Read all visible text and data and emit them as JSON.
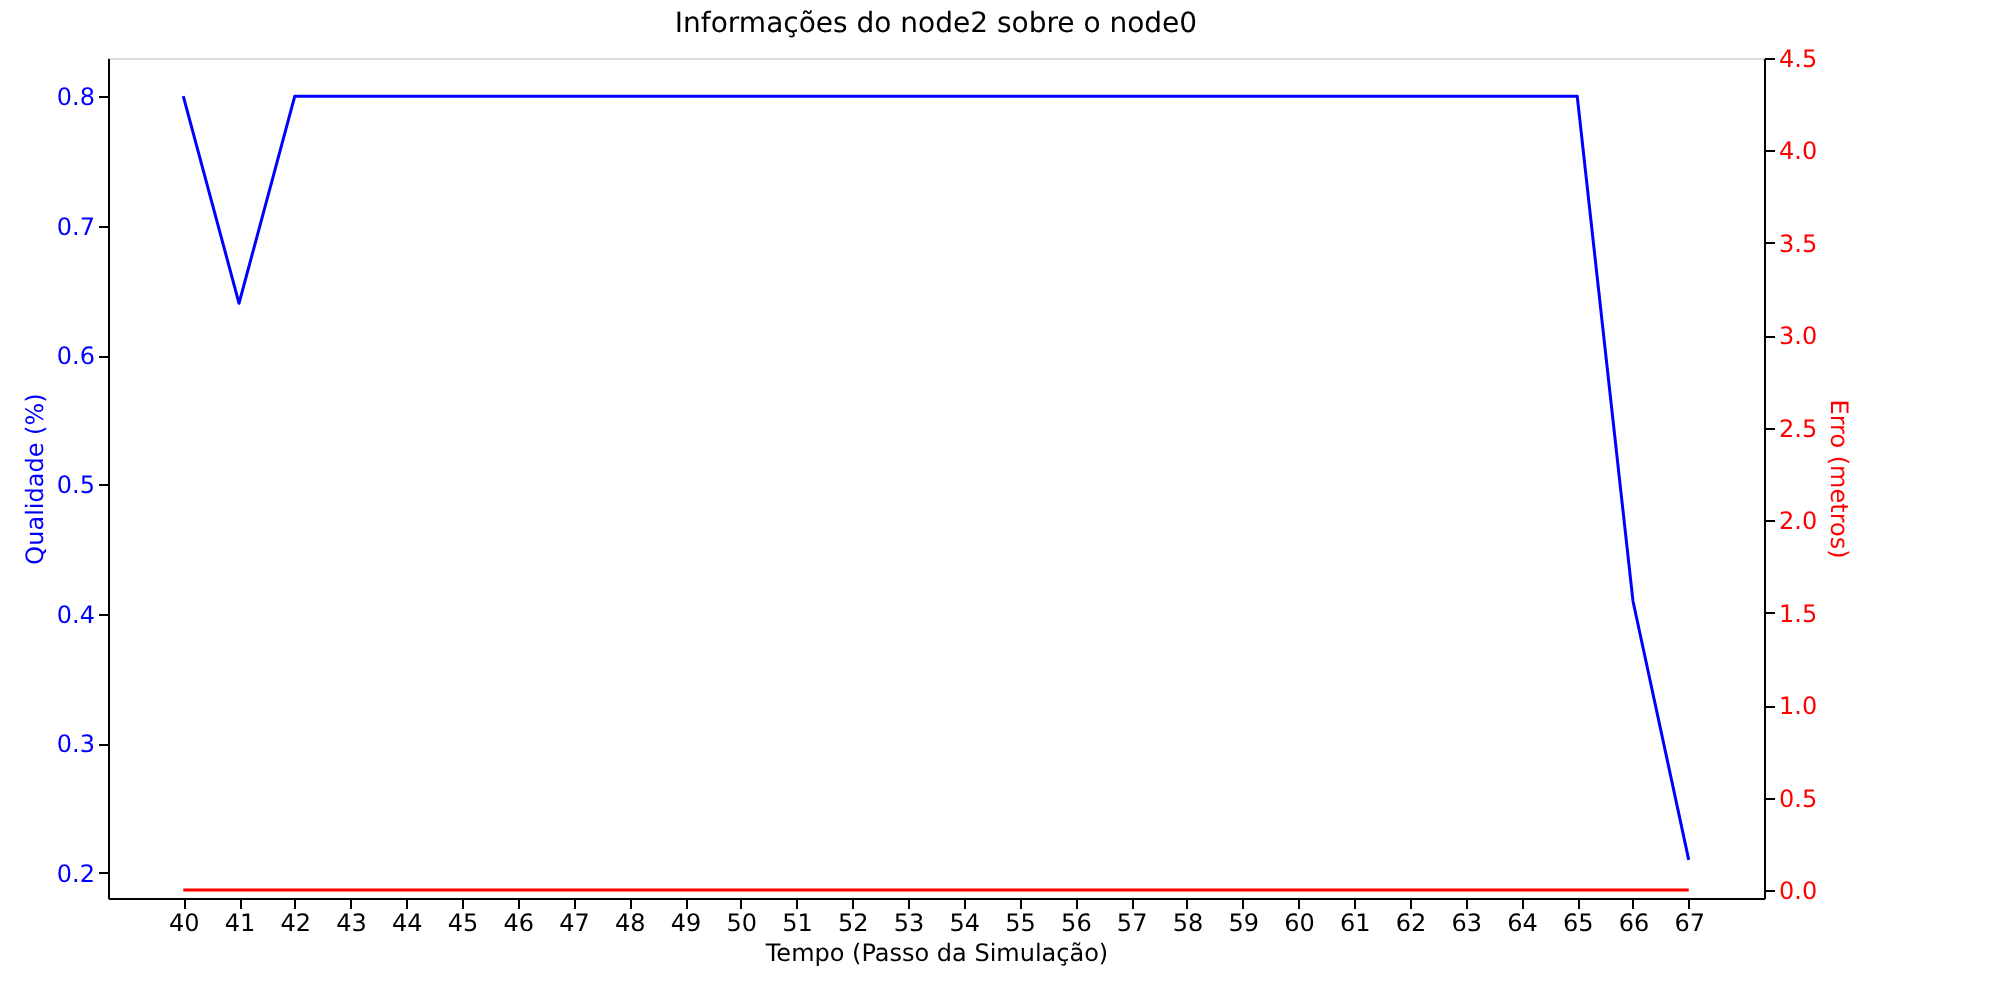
{
  "chart_data": {
    "type": "line",
    "title": "Informações do node2 sobre o node0",
    "xlabel": "Tempo (Passo da Simulação)",
    "ylabel": "Qualidade (%)",
    "y2label": "Erro (metros)",
    "x": [
      40,
      41,
      42,
      43,
      44,
      45,
      46,
      47,
      48,
      49,
      50,
      51,
      52,
      53,
      54,
      55,
      56,
      57,
      58,
      59,
      60,
      61,
      62,
      63,
      64,
      65,
      66,
      67
    ],
    "series": [
      {
        "color": "#0000ff",
        "values": [
          0.8,
          0.64,
          0.8,
          0.8,
          0.8,
          0.8,
          0.8,
          0.8,
          0.8,
          0.8,
          0.8,
          0.8,
          0.8,
          0.8,
          0.8,
          0.8,
          0.8,
          0.8,
          0.8,
          0.8,
          0.8,
          0.8,
          0.8,
          0.8,
          0.8,
          0.8,
          0.41,
          0.21
        ]
      },
      {
        "color": "#ff0000",
        "axis": "y2",
        "values": [
          0,
          0,
          0,
          0,
          0,
          0,
          0,
          0,
          0,
          0,
          0,
          0,
          0,
          0,
          0,
          0,
          0,
          0,
          0,
          0,
          0,
          0,
          0,
          0,
          0,
          0,
          0,
          0
        ]
      }
    ],
    "xlim": [
      38.65,
      68.35
    ],
    "xticks": [
      40,
      41,
      42,
      43,
      44,
      45,
      46,
      47,
      48,
      49,
      50,
      51,
      52,
      53,
      54,
      55,
      56,
      57,
      58,
      59,
      60,
      61,
      62,
      63,
      64,
      65,
      66,
      67
    ],
    "ylim": [
      0.1805,
      0.8295
    ],
    "yticks": [
      0.2,
      0.3,
      0.4,
      0.5,
      0.6,
      0.7,
      0.8
    ],
    "y2lim": [
      -0.043,
      4.5
    ],
    "y2ticks": [
      {
        "value": 0,
        "label": "0.0"
      },
      0.5,
      {
        "value": 1,
        "label": "1.0"
      },
      1.5,
      {
        "value": 2,
        "label": "2.0"
      },
      2.5,
      {
        "value": 3,
        "label": "3.0"
      },
      3.5,
      {
        "value": 4,
        "label": "4.0"
      },
      4.5
    ],
    "grid": false,
    "marker": "none",
    "line_style": "solid"
  }
}
